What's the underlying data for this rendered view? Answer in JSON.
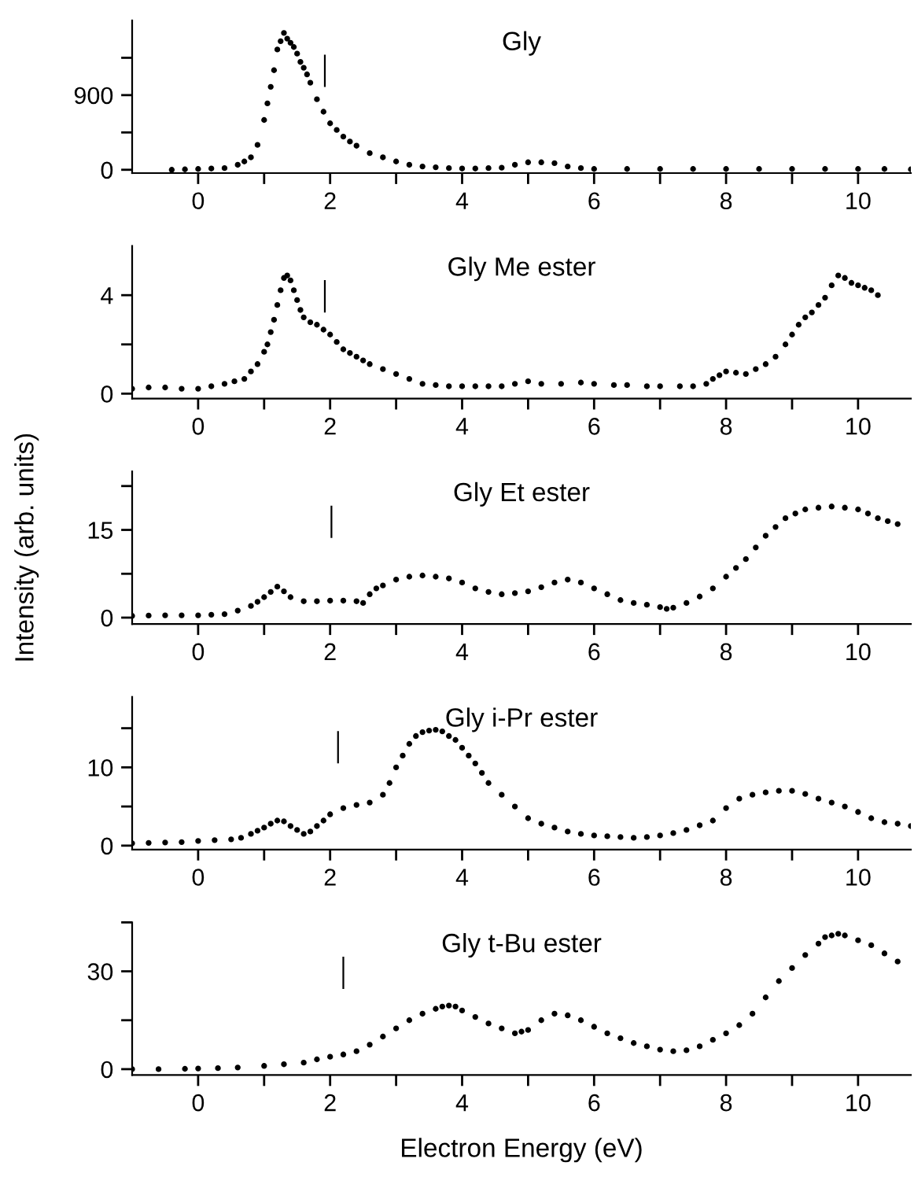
{
  "chart_data": [
    {
      "type": "scatter",
      "title": "Gly",
      "xlim": [
        -1,
        10.8
      ],
      "ylim": [
        -40,
        1800
      ],
      "yticks": [
        0,
        {
          "value": 450,
          "label": null
        },
        900,
        {
          "value": 1350,
          "label": null
        }
      ],
      "xticks": [
        0,
        {
          "value": 1,
          "label": null
        },
        2,
        {
          "value": 3,
          "label": null
        },
        4,
        {
          "value": 5,
          "label": null
        },
        6,
        {
          "value": 7,
          "label": null
        },
        8,
        {
          "value": 9,
          "label": null
        },
        10
      ],
      "marker": "circle",
      "grid": false,
      "ref_lines": [
        {
          "axis": "x",
          "value": 1.92,
          "color": "#000000"
        }
      ],
      "series": [
        {
          "color": "#000000",
          "x": [
            -0.4,
            -0.2,
            0,
            0.2,
            0.4,
            0.6,
            0.7,
            0.8,
            0.9,
            1.0,
            1.05,
            1.1,
            1.15,
            1.2,
            1.25,
            1.3,
            1.35,
            1.4,
            1.45,
            1.5,
            1.55,
            1.6,
            1.65,
            1.7,
            1.8,
            1.9,
            2.0,
            2.1,
            2.2,
            2.3,
            2.4,
            2.6,
            2.8,
            3.0,
            3.2,
            3.4,
            3.6,
            3.8,
            4.0,
            4.2,
            4.4,
            4.6,
            4.8,
            5.0,
            5.2,
            5.4,
            5.6,
            5.8,
            6.0,
            6.5,
            7.0,
            7.5,
            8.0,
            8.5,
            9.0,
            9.5,
            10.0,
            10.4,
            10.8
          ],
          "values": [
            0,
            5,
            10,
            15,
            20,
            60,
            100,
            150,
            300,
            600,
            800,
            1000,
            1200,
            1450,
            1550,
            1650,
            1580,
            1530,
            1480,
            1400,
            1300,
            1230,
            1150,
            1050,
            850,
            700,
            560,
            480,
            400,
            340,
            290,
            200,
            150,
            100,
            60,
            40,
            30,
            20,
            15,
            15,
            20,
            25,
            60,
            90,
            90,
            80,
            40,
            20,
            10,
            10,
            10,
            10,
            10,
            10,
            10,
            10,
            10,
            10,
            5
          ]
        }
      ]
    },
    {
      "type": "scatter",
      "title": "Gly Me ester",
      "xlim": [
        -1,
        10.8
      ],
      "ylim": [
        -0.2,
        6
      ],
      "yticks": [
        0,
        {
          "value": 2,
          "label": null
        },
        4
      ],
      "xticks": [
        0,
        {
          "value": 1,
          "label": null
        },
        2,
        {
          "value": 3,
          "label": null
        },
        4,
        {
          "value": 5,
          "label": null
        },
        6,
        {
          "value": 7,
          "label": null
        },
        8,
        {
          "value": 9,
          "label": null
        },
        10
      ],
      "marker": "circle",
      "grid": false,
      "ref_lines": [
        {
          "axis": "x",
          "value": 1.92,
          "color": "#000000"
        }
      ],
      "series": [
        {
          "color": "#000000",
          "x": [
            -1,
            -0.75,
            -0.5,
            -0.25,
            0,
            0.2,
            0.4,
            0.55,
            0.7,
            0.8,
            0.9,
            1.0,
            1.05,
            1.1,
            1.15,
            1.2,
            1.25,
            1.3,
            1.35,
            1.4,
            1.45,
            1.5,
            1.55,
            1.6,
            1.7,
            1.8,
            1.9,
            2.0,
            2.1,
            2.2,
            2.3,
            2.4,
            2.5,
            2.6,
            2.8,
            3.0,
            3.2,
            3.4,
            3.6,
            3.8,
            4.0,
            4.2,
            4.4,
            4.6,
            4.8,
            5.0,
            5.2,
            5.5,
            5.8,
            6.0,
            6.3,
            6.5,
            6.8,
            7.0,
            7.3,
            7.5,
            7.7,
            7.8,
            7.9,
            8.0,
            8.15,
            8.3,
            8.45,
            8.6,
            8.75,
            8.9,
            9.0,
            9.1,
            9.2,
            9.3,
            9.4,
            9.5,
            9.6,
            9.7,
            9.8,
            9.9,
            10.0,
            10.1,
            10.2,
            10.3
          ],
          "values": [
            0.2,
            0.25,
            0.25,
            0.2,
            0.2,
            0.3,
            0.4,
            0.5,
            0.6,
            0.9,
            1.2,
            1.7,
            2.0,
            2.5,
            3.0,
            3.6,
            4.2,
            4.7,
            4.8,
            4.6,
            4.2,
            3.8,
            3.4,
            3.1,
            2.9,
            2.8,
            2.6,
            2.4,
            2.1,
            1.8,
            1.65,
            1.5,
            1.35,
            1.2,
            1.0,
            0.8,
            0.6,
            0.4,
            0.35,
            0.3,
            0.3,
            0.3,
            0.3,
            0.3,
            0.4,
            0.5,
            0.4,
            0.4,
            0.45,
            0.4,
            0.35,
            0.35,
            0.3,
            0.3,
            0.3,
            0.3,
            0.4,
            0.6,
            0.75,
            0.9,
            0.85,
            0.8,
            1.0,
            1.2,
            1.5,
            2.0,
            2.4,
            2.8,
            3.1,
            3.3,
            3.6,
            3.9,
            4.4,
            4.8,
            4.7,
            4.5,
            4.4,
            4.3,
            4.2,
            4.0
          ]
        }
      ]
    },
    {
      "type": "scatter",
      "title": "Gly Et ester",
      "ylabel": "Intensity (arb. units)",
      "xlim": [
        -1,
        10.8
      ],
      "ylim": [
        -1.1,
        25
      ],
      "yticks": [
        0,
        {
          "value": 7.5,
          "label": null
        },
        15,
        {
          "value": 22.5,
          "label": null
        }
      ],
      "xticks": [
        0,
        {
          "value": 1,
          "label": null
        },
        2,
        {
          "value": 3,
          "label": null
        },
        4,
        {
          "value": 5,
          "label": null
        },
        6,
        {
          "value": 7,
          "label": null
        },
        8,
        {
          "value": 9,
          "label": null
        },
        10
      ],
      "marker": "circle",
      "grid": false,
      "ref_lines": [
        {
          "axis": "x",
          "value": 2.02,
          "color": "#000000"
        }
      ],
      "series": [
        {
          "color": "#000000",
          "x": [
            -1,
            -0.75,
            -0.5,
            -0.25,
            0,
            0.2,
            0.4,
            0.6,
            0.8,
            0.9,
            1.0,
            1.1,
            1.2,
            1.3,
            1.4,
            1.6,
            1.8,
            2.0,
            2.2,
            2.4,
            2.5,
            2.6,
            2.7,
            2.8,
            3.0,
            3.2,
            3.4,
            3.6,
            3.8,
            4.0,
            4.2,
            4.4,
            4.6,
            4.8,
            5.0,
            5.2,
            5.4,
            5.6,
            5.8,
            6.0,
            6.2,
            6.4,
            6.6,
            6.8,
            7.0,
            7.1,
            7.2,
            7.4,
            7.6,
            7.8,
            8.0,
            8.15,
            8.3,
            8.45,
            8.6,
            8.75,
            8.9,
            9.05,
            9.2,
            9.4,
            9.6,
            9.8,
            10.0,
            10.15,
            10.3,
            10.45,
            10.6
          ],
          "values": [
            0.3,
            0.35,
            0.4,
            0.4,
            0.4,
            0.5,
            0.6,
            1.2,
            2.0,
            2.7,
            3.5,
            4.4,
            5.3,
            4.5,
            3.5,
            2.8,
            2.8,
            2.9,
            2.9,
            2.8,
            2.5,
            4.0,
            5.0,
            5.5,
            6.5,
            7.0,
            7.2,
            7.0,
            6.7,
            6.0,
            5.0,
            4.4,
            4.0,
            4.2,
            4.5,
            5.2,
            6.0,
            6.5,
            6.0,
            5.0,
            4.0,
            3.0,
            2.5,
            2.2,
            1.8,
            1.5,
            1.7,
            2.5,
            3.6,
            5.0,
            7.0,
            8.5,
            10.0,
            12.0,
            14.0,
            15.5,
            17.0,
            17.8,
            18.5,
            18.8,
            19.0,
            18.8,
            18.5,
            17.8,
            17.0,
            16.5,
            16.0
          ]
        }
      ]
    },
    {
      "type": "scatter",
      "title": "Gly i-Pr ester",
      "xlim": [
        -1,
        10.8
      ],
      "ylim": [
        -0.5,
        19
      ],
      "yticks": [
        0,
        {
          "value": 5,
          "label": null
        },
        10,
        {
          "value": 15,
          "label": null
        }
      ],
      "xticks": [
        0,
        {
          "value": 1,
          "label": null
        },
        2,
        {
          "value": 3,
          "label": null
        },
        4,
        {
          "value": 5,
          "label": null
        },
        6,
        {
          "value": 7,
          "label": null
        },
        8,
        {
          "value": 9,
          "label": null
        },
        10
      ],
      "marker": "circle",
      "grid": false,
      "ref_lines": [
        {
          "axis": "x",
          "value": 2.12,
          "color": "#000000"
        }
      ],
      "series": [
        {
          "color": "#000000",
          "x": [
            -1,
            -0.75,
            -0.5,
            -0.25,
            0,
            0.25,
            0.5,
            0.65,
            0.8,
            0.9,
            1.0,
            1.1,
            1.2,
            1.3,
            1.4,
            1.5,
            1.6,
            1.7,
            1.8,
            1.9,
            2.0,
            2.2,
            2.4,
            2.6,
            2.8,
            2.9,
            3.0,
            3.1,
            3.2,
            3.3,
            3.4,
            3.5,
            3.6,
            3.7,
            3.8,
            3.9,
            4.0,
            4.1,
            4.2,
            4.3,
            4.4,
            4.6,
            4.8,
            5.0,
            5.2,
            5.4,
            5.6,
            5.8,
            6.0,
            6.2,
            6.4,
            6.6,
            6.8,
            7.0,
            7.2,
            7.4,
            7.6,
            7.8,
            8.0,
            8.2,
            8.4,
            8.6,
            8.8,
            9.0,
            9.2,
            9.4,
            9.6,
            9.8,
            10.0,
            10.2,
            10.4,
            10.6,
            10.8
          ],
          "values": [
            0.3,
            0.35,
            0.4,
            0.45,
            0.6,
            0.7,
            0.8,
            1.0,
            1.5,
            1.9,
            2.3,
            2.8,
            3.2,
            3.1,
            2.5,
            2.0,
            1.5,
            1.8,
            2.5,
            3.2,
            4.0,
            4.8,
            5.2,
            5.5,
            6.5,
            8.0,
            10.0,
            11.5,
            13.0,
            14.0,
            14.5,
            14.7,
            14.8,
            14.6,
            14.0,
            13.5,
            12.5,
            11.5,
            10.5,
            9.3,
            8.0,
            6.5,
            5.0,
            3.5,
            2.8,
            2.3,
            1.8,
            1.5,
            1.3,
            1.2,
            1.1,
            1.0,
            1.1,
            1.3,
            1.6,
            2.0,
            2.6,
            3.2,
            4.8,
            6.0,
            6.5,
            6.8,
            7.0,
            7.0,
            6.6,
            6.0,
            5.5,
            5.0,
            4.3,
            3.5,
            3.0,
            2.8,
            2.5
          ]
        }
      ]
    },
    {
      "type": "scatter",
      "title": "Gly t-Bu ester",
      "xlabel": "Electron Energy (eV)",
      "xlim": [
        -1,
        10.8
      ],
      "ylim": [
        -1.8,
        45
      ],
      "yticks": [
        0,
        {
          "value": 15,
          "label": null
        },
        30,
        {
          "value": 45,
          "label": null
        }
      ],
      "xticks": [
        0,
        {
          "value": 1,
          "label": null
        },
        2,
        {
          "value": 3,
          "label": null
        },
        4,
        {
          "value": 5,
          "label": null
        },
        6,
        {
          "value": 7,
          "label": null
        },
        8,
        {
          "value": 9,
          "label": null
        },
        10
      ],
      "marker": "circle",
      "grid": false,
      "ref_lines": [
        {
          "axis": "x",
          "value": 2.2,
          "color": "#000000"
        }
      ],
      "series": [
        {
          "color": "#000000",
          "x": [
            -1,
            -0.6,
            -0.2,
            0,
            0.3,
            0.6,
            1.0,
            1.3,
            1.6,
            1.8,
            2.0,
            2.2,
            2.4,
            2.6,
            2.8,
            3.0,
            3.2,
            3.4,
            3.6,
            3.7,
            3.8,
            3.9,
            4.0,
            4.2,
            4.4,
            4.6,
            4.8,
            4.9,
            5.0,
            5.2,
            5.4,
            5.6,
            5.8,
            6.0,
            6.2,
            6.4,
            6.6,
            6.8,
            7.0,
            7.2,
            7.4,
            7.6,
            7.8,
            8.0,
            8.2,
            8.4,
            8.6,
            8.8,
            9.0,
            9.2,
            9.4,
            9.5,
            9.6,
            9.7,
            9.8,
            10.0,
            10.2,
            10.4,
            10.6
          ],
          "values": [
            0,
            0,
            0.1,
            0.2,
            0.3,
            0.5,
            1.0,
            1.5,
            2.0,
            3.0,
            3.8,
            4.5,
            5.5,
            7.5,
            10.0,
            12.5,
            15.0,
            17.0,
            18.5,
            19.2,
            19.5,
            19.2,
            18.0,
            16.0,
            14.0,
            12.5,
            11.0,
            11.5,
            12.0,
            15.0,
            17.0,
            16.5,
            15.0,
            13.0,
            11.0,
            9.5,
            8.0,
            7.0,
            6.0,
            5.5,
            5.8,
            7.0,
            9.0,
            11.0,
            13.5,
            17.0,
            22.0,
            27.0,
            31.0,
            35.0,
            38.5,
            40.5,
            41.0,
            41.5,
            41.0,
            39.5,
            38.0,
            35.5,
            33.0
          ]
        }
      ]
    }
  ]
}
